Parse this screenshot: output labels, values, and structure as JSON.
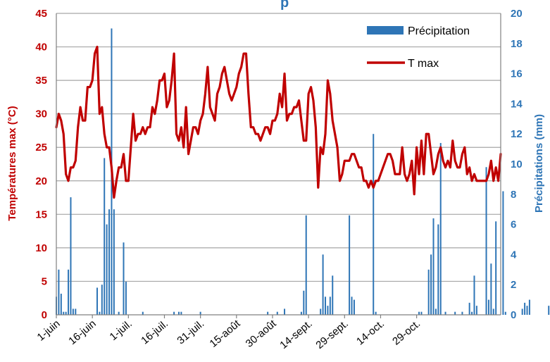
{
  "chart_data": {
    "type": "bar+line",
    "title": "p",
    "x_tick_labels": [
      "1-juin",
      "16-juin",
      "1-juil.",
      "16-juil.",
      "31-juil.",
      "15-août",
      "30-août",
      "14-sept.",
      "29-sept.",
      "14-oct.",
      "29-oct."
    ],
    "start_date": "06-01",
    "ylabel_left": "Températures max (°C)",
    "ylabel_right": "Précipitations (mm)",
    "ylim_left": [
      0,
      45
    ],
    "ylim_right": [
      0,
      20
    ],
    "yticks_left": [
      0,
      5,
      10,
      15,
      20,
      25,
      30,
      35,
      40,
      45
    ],
    "yticks_right": [
      0,
      2,
      4,
      6,
      8,
      10,
      12,
      14,
      16,
      18,
      20
    ],
    "grid": "horizontal",
    "legend_position": "top-right",
    "series": [
      {
        "name": "Précipitation",
        "type": "bar",
        "axis": "right",
        "color": "#2e75b6",
        "values": [
          1.2,
          3,
          1.4,
          0.2,
          0.2,
          3,
          7.8,
          0.4,
          0.4,
          0,
          0,
          0,
          0,
          0,
          0,
          0,
          0,
          1.8,
          0.2,
          2,
          10.4,
          6,
          7,
          19,
          7,
          0,
          0.2,
          0,
          4.8,
          2.2,
          0,
          0,
          0,
          0,
          0,
          0,
          0.2,
          0,
          0,
          0,
          0,
          0,
          0,
          0,
          0,
          0,
          0,
          0,
          0,
          0.2,
          0,
          0.2,
          0.2,
          0,
          0,
          0,
          0,
          0,
          0,
          0,
          0.2,
          0,
          0,
          0,
          0,
          0,
          0,
          0,
          0,
          0,
          0,
          0,
          0,
          0,
          0,
          0,
          0,
          0,
          0,
          0,
          0,
          0,
          0,
          0,
          0,
          0,
          0,
          0,
          0.2,
          0,
          0,
          0,
          0.2,
          0,
          0,
          0.4,
          0,
          0,
          0,
          0,
          0,
          0,
          0.2,
          1.6,
          6.6,
          0,
          0,
          0,
          0,
          0,
          0.4,
          4,
          1.2,
          0.6,
          1.2,
          2.6,
          0,
          0,
          0,
          0,
          0,
          0,
          6.6,
          1.2,
          1,
          0,
          0,
          0,
          0,
          0,
          0,
          0,
          12,
          0.2,
          0,
          0,
          0,
          0,
          0,
          0,
          0,
          0,
          0,
          0,
          0,
          0,
          0,
          0,
          0,
          0,
          0,
          0.2,
          0.2,
          0,
          0,
          3,
          4,
          6.4,
          0.4,
          6,
          11.4,
          0,
          0.2,
          0,
          0,
          0,
          0.2,
          0,
          0,
          0.2,
          0,
          0,
          0.8,
          0.2,
          2.6,
          0.6,
          0,
          0,
          0,
          9.8,
          1,
          3.4,
          0.4,
          6.2,
          0,
          0,
          8.2,
          0.2,
          0,
          0,
          0,
          0,
          0,
          0,
          0.4,
          0.8,
          0.6,
          1,
          0,
          0,
          0,
          0,
          0,
          0,
          0,
          0.6,
          1
        ]
      },
      {
        "name": "T max",
        "type": "line",
        "axis": "left",
        "color": "#c00000",
        "values": [
          28,
          30,
          29,
          27,
          21,
          20,
          22,
          22,
          23,
          28,
          31,
          29,
          29,
          34,
          34,
          35,
          39,
          40,
          30,
          31,
          27,
          25,
          25,
          22,
          17.5,
          20,
          22,
          22,
          24,
          20,
          20,
          25,
          30,
          26,
          27,
          27,
          28,
          27,
          28,
          28,
          31,
          30,
          32,
          35,
          35,
          36,
          31,
          32,
          35,
          39,
          27,
          26,
          28,
          25,
          31,
          24,
          26,
          28,
          28,
          27,
          29,
          30,
          33,
          37,
          31,
          30,
          29,
          33,
          34,
          36,
          37,
          35,
          33,
          32,
          33,
          34,
          36,
          37,
          39,
          39,
          33,
          28,
          28,
          27,
          27,
          26,
          27,
          28,
          28,
          27,
          29,
          29,
          30,
          33,
          31,
          36,
          29,
          30,
          30,
          31,
          31,
          32,
          29,
          26,
          26,
          33,
          34,
          32,
          28,
          19,
          25,
          24,
          27,
          35,
          33,
          29,
          27,
          25,
          20,
          21,
          23,
          23,
          23,
          24,
          24,
          23,
          22,
          22,
          20,
          20,
          19,
          20,
          19,
          20,
          20,
          21,
          22,
          23,
          24,
          24,
          23,
          21,
          21,
          21,
          25,
          21,
          20,
          21,
          23,
          18,
          25,
          21,
          26,
          21,
          27,
          27,
          24,
          21,
          22,
          24,
          25,
          23,
          22,
          23,
          22,
          26,
          23,
          22,
          22,
          24,
          25,
          21,
          22,
          20,
          21,
          20,
          20,
          20,
          20,
          20,
          21,
          23,
          20,
          22,
          20,
          24
        ]
      }
    ]
  }
}
